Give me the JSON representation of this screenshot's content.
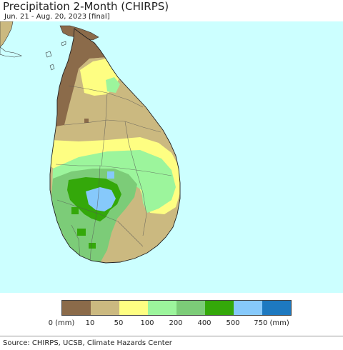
{
  "title": "Precipitation 2-Month (CHIRPS)",
  "subtitle": "Jun. 21 - Aug. 20, 2023 [final]",
  "colors": {
    "ocean": "#ccffff",
    "c0": "#8b6b4a",
    "c10": "#cbb980",
    "c50": "#fefe82",
    "c100": "#9cf59c",
    "c200": "#7ccc78",
    "c400": "#34a80a",
    "c500": "#86c9fb",
    "c750": "#1d79c0"
  },
  "legend": {
    "swatches": [
      "#8b6b4a",
      "#cbb980",
      "#fefe82",
      "#9cf59c",
      "#7ccc78",
      "#34a80a",
      "#86c9fb",
      "#1d79c0"
    ],
    "labels": [
      "0 (mm)",
      "10",
      "50",
      "100",
      "200",
      "400",
      "500",
      "750 (mm)"
    ]
  },
  "source": "Source: CHIRPS, UCSB, Climate Hazards Center"
}
